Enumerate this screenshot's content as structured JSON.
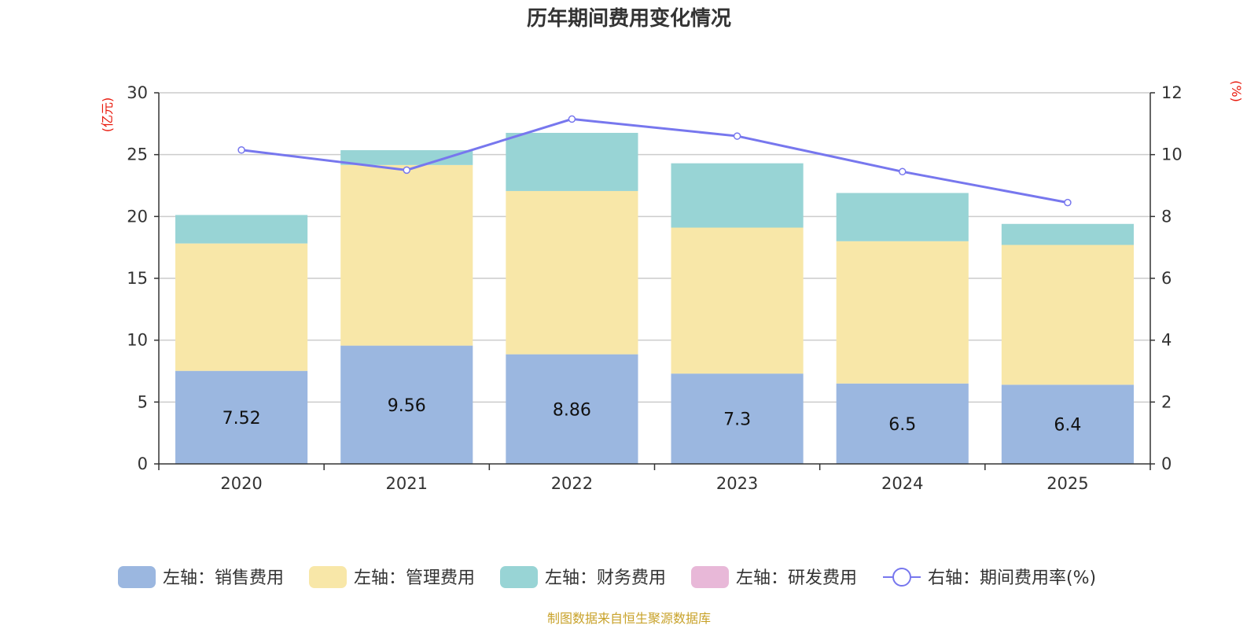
{
  "chart_data": {
    "type": "bar",
    "title": "历年期间费用变化情况",
    "categories": [
      "2020",
      "2021",
      "2022",
      "2023",
      "2024",
      "2025"
    ],
    "left_axis": {
      "unit": "(亿元)",
      "ylim": [
        0,
        30
      ],
      "ticks": [
        0,
        5,
        10,
        15,
        20,
        25,
        30
      ]
    },
    "right_axis": {
      "unit": "(%)",
      "ylim": [
        0,
        12
      ],
      "ticks": [
        0,
        2,
        4,
        6,
        8,
        10,
        12
      ]
    },
    "series": [
      {
        "name": "左轴：销售费用",
        "axis": "left",
        "type": "stacked-bar",
        "color": "#9bb7e0",
        "values": [
          7.52,
          9.56,
          8.86,
          7.3,
          6.5,
          6.4
        ],
        "labels": [
          "7.52",
          "9.56",
          "8.86",
          "7.3",
          "6.5",
          "6.4"
        ]
      },
      {
        "name": "左轴：管理费用",
        "axis": "left",
        "type": "stacked-bar",
        "color": "#f8e7a8",
        "values": [
          10.3,
          14.6,
          13.2,
          11.8,
          11.5,
          11.3
        ]
      },
      {
        "name": "左轴：财务费用",
        "axis": "left",
        "type": "stacked-bar",
        "color": "#98d4d5",
        "values": [
          2.3,
          1.2,
          4.7,
          5.2,
          3.9,
          1.7
        ]
      },
      {
        "name": "左轴：研发费用",
        "axis": "left",
        "type": "stacked-bar",
        "color": "#e8b8d8",
        "values": [
          0,
          0,
          0,
          0,
          0,
          0
        ]
      },
      {
        "name": "右轴：期间费用率(%)",
        "axis": "right",
        "type": "line",
        "color": "#7777ee",
        "values": [
          10.15,
          9.5,
          11.15,
          10.6,
          9.45,
          8.45
        ]
      }
    ],
    "source": "制图数据来自恒生聚源数据库"
  }
}
